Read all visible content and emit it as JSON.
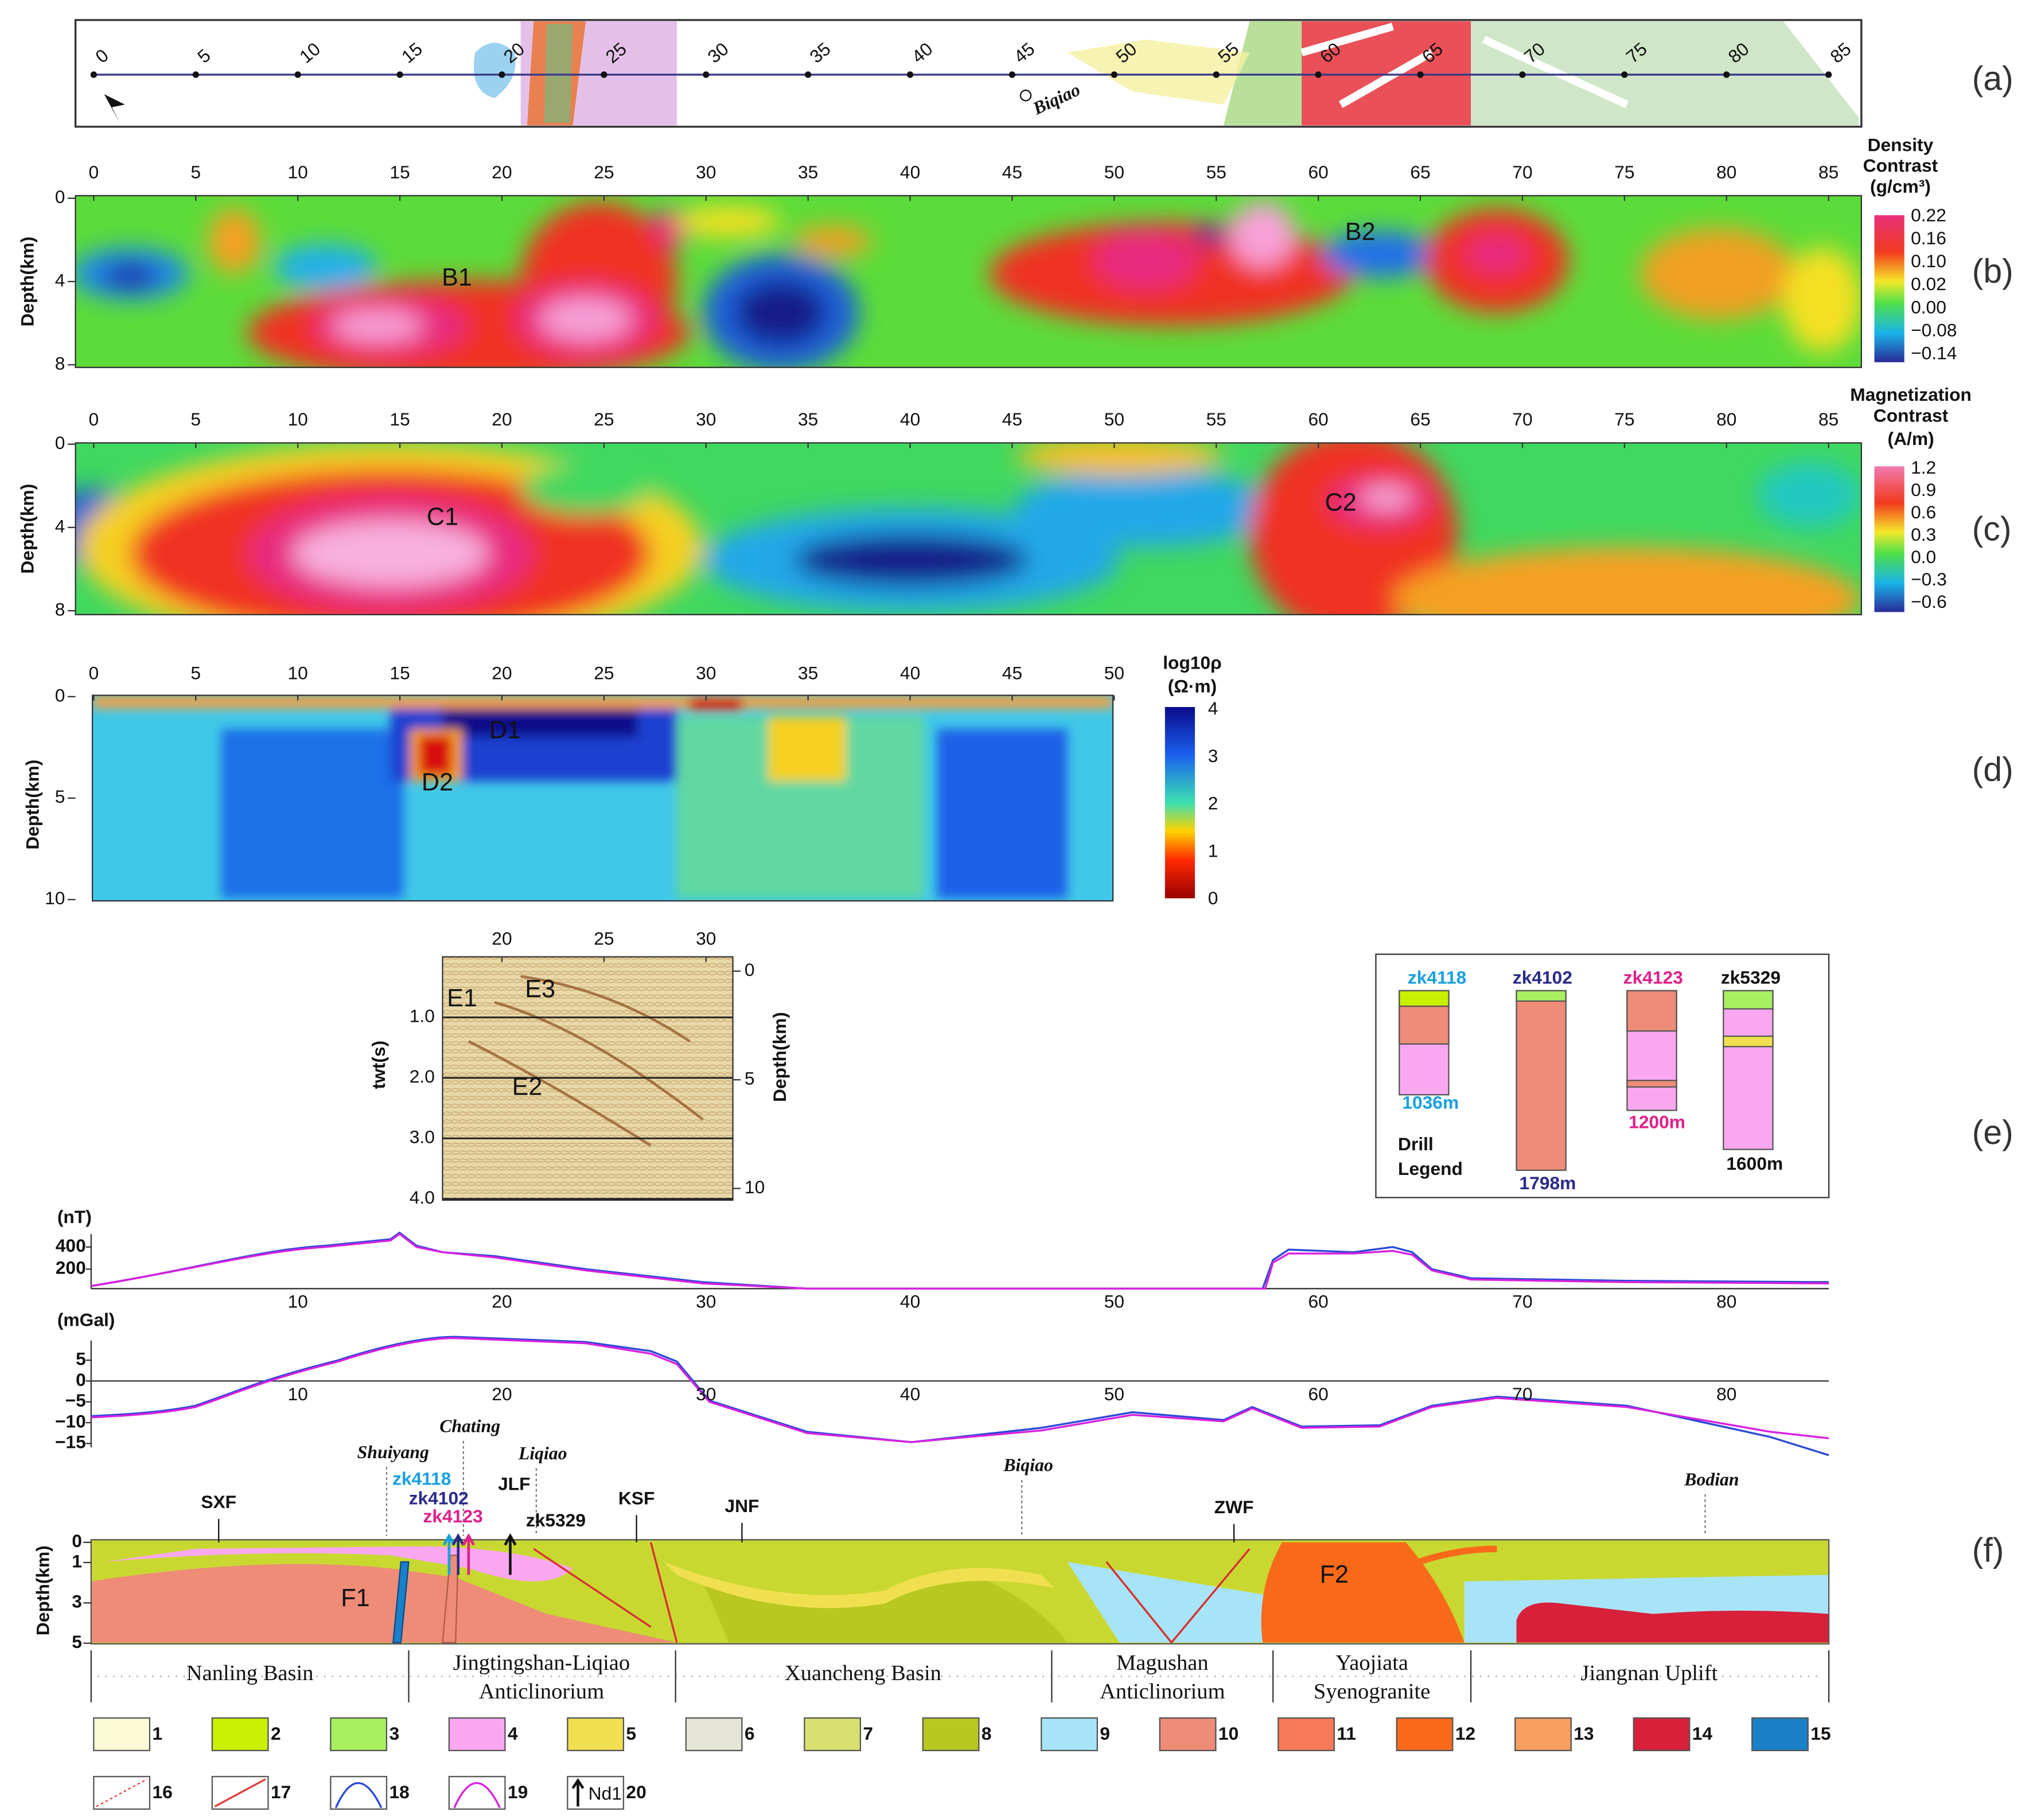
{
  "panel_labels": [
    "(a)",
    "(b)",
    "(c)",
    "(d)",
    "(e)",
    "(f)"
  ],
  "a": {
    "ticks": [
      "0",
      "5",
      "10",
      "15",
      "20",
      "25",
      "30",
      "35",
      "40",
      "45",
      "50",
      "55",
      "60",
      "65",
      "70",
      "75",
      "80",
      "85"
    ],
    "place": "Biqiao"
  },
  "b": {
    "x_ticks": [
      "0",
      "5",
      "10",
      "15",
      "20",
      "25",
      "30",
      "35",
      "40",
      "45",
      "50",
      "55",
      "60",
      "65",
      "70",
      "75",
      "80",
      "85"
    ],
    "y_ticks": [
      "0",
      "4",
      "8"
    ],
    "y_label": "Depth(km)",
    "colorbar_title": [
      "Density",
      "Contrast",
      "(g/cm³)"
    ],
    "colorbar_ticks": [
      "0.22",
      "0.16",
      "0.10",
      "0.02",
      "0.00",
      "−0.08",
      "−0.14"
    ],
    "annotations": [
      "B1",
      "B2"
    ]
  },
  "c": {
    "x_ticks": [
      "0",
      "5",
      "10",
      "15",
      "20",
      "25",
      "30",
      "35",
      "40",
      "45",
      "50",
      "55",
      "60",
      "65",
      "70",
      "75",
      "80",
      "85"
    ],
    "y_ticks": [
      "0",
      "4",
      "8"
    ],
    "y_label": "Depth(km)",
    "colorbar_title": [
      "Magnetization",
      "Contrast",
      "(A/m)"
    ],
    "colorbar_ticks": [
      "1.2",
      "0.9",
      "0.6",
      "0.3",
      "0.0",
      "−0.3",
      "−0.6"
    ],
    "annotations": [
      "C1",
      "C2"
    ]
  },
  "d": {
    "x_ticks": [
      "0",
      "5",
      "10",
      "15",
      "20",
      "25",
      "30",
      "35",
      "40",
      "45",
      "50"
    ],
    "y_ticks": [
      "0",
      "5",
      "10"
    ],
    "y_label": "Depth(km)",
    "colorbar_title": [
      "log10ρ",
      "(Ω·m)"
    ],
    "colorbar_ticks": [
      "4",
      "3",
      "2",
      "1",
      "0"
    ],
    "annotations": [
      "D1",
      "D2"
    ]
  },
  "e": {
    "seismic": {
      "x_ticks": [
        "20",
        "25",
        "30"
      ],
      "twt_ticks": [
        "1.0",
        "2.0",
        "3.0",
        "4.0"
      ],
      "twt_label": "twt(s)",
      "depth_ticks": [
        "0",
        "5",
        "10"
      ],
      "depth_label": "Depth(km)",
      "annotations": [
        "E1",
        "E2",
        "E3"
      ]
    },
    "drill": {
      "wells": [
        {
          "name": "zk4118",
          "depth": "1036m"
        },
        {
          "name": "zk4102",
          "depth": "1798m"
        },
        {
          "name": "zk4123",
          "depth": "1200m"
        },
        {
          "name": "zk5329",
          "depth": "1600m"
        }
      ],
      "legend": [
        "Drill",
        "Legend"
      ]
    }
  },
  "magnetic": {
    "unit": "(nT)",
    "y_ticks": [
      "400",
      "200"
    ],
    "x_ticks": [
      "10",
      "20",
      "30",
      "40",
      "50",
      "60",
      "70",
      "80"
    ]
  },
  "gravity": {
    "unit": "(mGal)",
    "y_ticks": [
      "5",
      "0",
      "−5",
      "−10",
      "−15"
    ],
    "x_ticks": [
      "10",
      "20",
      "30",
      "40",
      "50",
      "60",
      "70",
      "80"
    ]
  },
  "f": {
    "places": [
      "Shuiyang",
      "Chating",
      "Liqiao",
      "Biqiao",
      "Bodian"
    ],
    "wells": [
      "zk4118",
      "zk4102",
      "zk4123",
      "JLF",
      "zk5329"
    ],
    "faults": [
      "SXF",
      "KSF",
      "JNF",
      "ZWF"
    ],
    "bodies": [
      "F1",
      "F2"
    ],
    "y_ticks": [
      "0",
      "1",
      "3",
      "5"
    ],
    "y_label": "Depth(km)",
    "units": [
      [
        "Nanling Basin"
      ],
      [
        "Jingtingshan-Liqiao",
        "Anticlinorium"
      ],
      [
        "Xuancheng Basin"
      ],
      [
        "Magushan",
        "Anticlinorium"
      ],
      [
        "Yaojiata",
        "Syenogranite"
      ],
      [
        "Jiangnan Uplift"
      ]
    ]
  },
  "legend": {
    "items": [
      "1",
      "2",
      "3",
      "4",
      "5",
      "6",
      "7",
      "8",
      "9",
      "10",
      "11",
      "12",
      "13",
      "14",
      "15",
      "16",
      "17",
      "18",
      "19",
      "20"
    ],
    "symbol_text": "Nd1"
  }
}
